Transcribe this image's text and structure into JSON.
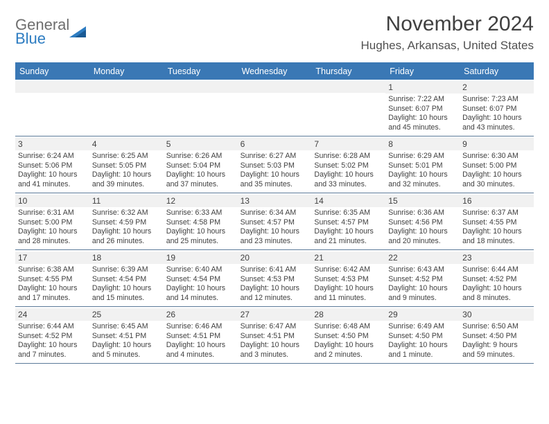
{
  "logo": {
    "word1": "General",
    "word2": "Blue"
  },
  "title": "November 2024",
  "location": "Hughes, Arkansas, United States",
  "dayHeaders": [
    "Sunday",
    "Monday",
    "Tuesday",
    "Wednesday",
    "Thursday",
    "Friday",
    "Saturday"
  ],
  "colors": {
    "headerBg": "#3a78b5",
    "headerText": "#ffffff",
    "logoGray": "#6e6e6e",
    "logoBlue": "#2d7cc1",
    "dayNumBg": "#f1f1f1",
    "borderColor": "#5b7a99",
    "textColor": "#404040"
  },
  "weeks": [
    [
      null,
      null,
      null,
      null,
      null,
      {
        "n": "1",
        "sunrise": "Sunrise: 7:22 AM",
        "sunset": "Sunset: 6:07 PM",
        "daylight": "Daylight: 10 hours and 45 minutes."
      },
      {
        "n": "2",
        "sunrise": "Sunrise: 7:23 AM",
        "sunset": "Sunset: 6:07 PM",
        "daylight": "Daylight: 10 hours and 43 minutes."
      }
    ],
    [
      {
        "n": "3",
        "sunrise": "Sunrise: 6:24 AM",
        "sunset": "Sunset: 5:06 PM",
        "daylight": "Daylight: 10 hours and 41 minutes."
      },
      {
        "n": "4",
        "sunrise": "Sunrise: 6:25 AM",
        "sunset": "Sunset: 5:05 PM",
        "daylight": "Daylight: 10 hours and 39 minutes."
      },
      {
        "n": "5",
        "sunrise": "Sunrise: 6:26 AM",
        "sunset": "Sunset: 5:04 PM",
        "daylight": "Daylight: 10 hours and 37 minutes."
      },
      {
        "n": "6",
        "sunrise": "Sunrise: 6:27 AM",
        "sunset": "Sunset: 5:03 PM",
        "daylight": "Daylight: 10 hours and 35 minutes."
      },
      {
        "n": "7",
        "sunrise": "Sunrise: 6:28 AM",
        "sunset": "Sunset: 5:02 PM",
        "daylight": "Daylight: 10 hours and 33 minutes."
      },
      {
        "n": "8",
        "sunrise": "Sunrise: 6:29 AM",
        "sunset": "Sunset: 5:01 PM",
        "daylight": "Daylight: 10 hours and 32 minutes."
      },
      {
        "n": "9",
        "sunrise": "Sunrise: 6:30 AM",
        "sunset": "Sunset: 5:00 PM",
        "daylight": "Daylight: 10 hours and 30 minutes."
      }
    ],
    [
      {
        "n": "10",
        "sunrise": "Sunrise: 6:31 AM",
        "sunset": "Sunset: 5:00 PM",
        "daylight": "Daylight: 10 hours and 28 minutes."
      },
      {
        "n": "11",
        "sunrise": "Sunrise: 6:32 AM",
        "sunset": "Sunset: 4:59 PM",
        "daylight": "Daylight: 10 hours and 26 minutes."
      },
      {
        "n": "12",
        "sunrise": "Sunrise: 6:33 AM",
        "sunset": "Sunset: 4:58 PM",
        "daylight": "Daylight: 10 hours and 25 minutes."
      },
      {
        "n": "13",
        "sunrise": "Sunrise: 6:34 AM",
        "sunset": "Sunset: 4:57 PM",
        "daylight": "Daylight: 10 hours and 23 minutes."
      },
      {
        "n": "14",
        "sunrise": "Sunrise: 6:35 AM",
        "sunset": "Sunset: 4:57 PM",
        "daylight": "Daylight: 10 hours and 21 minutes."
      },
      {
        "n": "15",
        "sunrise": "Sunrise: 6:36 AM",
        "sunset": "Sunset: 4:56 PM",
        "daylight": "Daylight: 10 hours and 20 minutes."
      },
      {
        "n": "16",
        "sunrise": "Sunrise: 6:37 AM",
        "sunset": "Sunset: 4:55 PM",
        "daylight": "Daylight: 10 hours and 18 minutes."
      }
    ],
    [
      {
        "n": "17",
        "sunrise": "Sunrise: 6:38 AM",
        "sunset": "Sunset: 4:55 PM",
        "daylight": "Daylight: 10 hours and 17 minutes."
      },
      {
        "n": "18",
        "sunrise": "Sunrise: 6:39 AM",
        "sunset": "Sunset: 4:54 PM",
        "daylight": "Daylight: 10 hours and 15 minutes."
      },
      {
        "n": "19",
        "sunrise": "Sunrise: 6:40 AM",
        "sunset": "Sunset: 4:54 PM",
        "daylight": "Daylight: 10 hours and 14 minutes."
      },
      {
        "n": "20",
        "sunrise": "Sunrise: 6:41 AM",
        "sunset": "Sunset: 4:53 PM",
        "daylight": "Daylight: 10 hours and 12 minutes."
      },
      {
        "n": "21",
        "sunrise": "Sunrise: 6:42 AM",
        "sunset": "Sunset: 4:53 PM",
        "daylight": "Daylight: 10 hours and 11 minutes."
      },
      {
        "n": "22",
        "sunrise": "Sunrise: 6:43 AM",
        "sunset": "Sunset: 4:52 PM",
        "daylight": "Daylight: 10 hours and 9 minutes."
      },
      {
        "n": "23",
        "sunrise": "Sunrise: 6:44 AM",
        "sunset": "Sunset: 4:52 PM",
        "daylight": "Daylight: 10 hours and 8 minutes."
      }
    ],
    [
      {
        "n": "24",
        "sunrise": "Sunrise: 6:44 AM",
        "sunset": "Sunset: 4:52 PM",
        "daylight": "Daylight: 10 hours and 7 minutes."
      },
      {
        "n": "25",
        "sunrise": "Sunrise: 6:45 AM",
        "sunset": "Sunset: 4:51 PM",
        "daylight": "Daylight: 10 hours and 5 minutes."
      },
      {
        "n": "26",
        "sunrise": "Sunrise: 6:46 AM",
        "sunset": "Sunset: 4:51 PM",
        "daylight": "Daylight: 10 hours and 4 minutes."
      },
      {
        "n": "27",
        "sunrise": "Sunrise: 6:47 AM",
        "sunset": "Sunset: 4:51 PM",
        "daylight": "Daylight: 10 hours and 3 minutes."
      },
      {
        "n": "28",
        "sunrise": "Sunrise: 6:48 AM",
        "sunset": "Sunset: 4:50 PM",
        "daylight": "Daylight: 10 hours and 2 minutes."
      },
      {
        "n": "29",
        "sunrise": "Sunrise: 6:49 AM",
        "sunset": "Sunset: 4:50 PM",
        "daylight": "Daylight: 10 hours and 1 minute."
      },
      {
        "n": "30",
        "sunrise": "Sunrise: 6:50 AM",
        "sunset": "Sunset: 4:50 PM",
        "daylight": "Daylight: 9 hours and 59 minutes."
      }
    ]
  ]
}
